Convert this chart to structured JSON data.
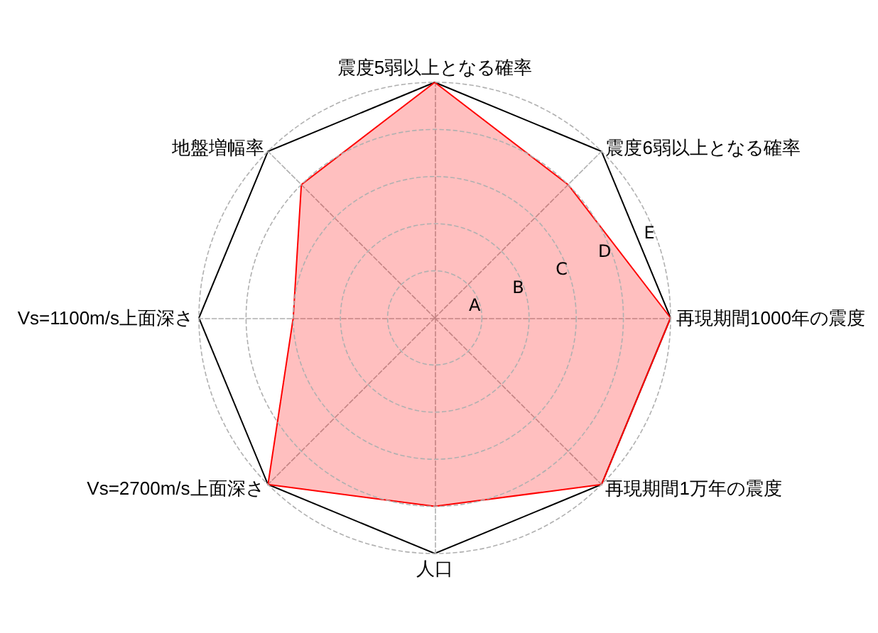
{
  "chart_data": {
    "type": "radar",
    "categories": [
      "震度5弱以上となる確率",
      "震度6弱以上となる確率",
      "再現期間1000年の震度",
      "再現期間1万年の震度",
      "人口",
      "Vs=2700m/s上面深さ",
      "Vs=1100m/s上面深さ",
      "地盤増幅率"
    ],
    "series": [
      {
        "color": "#ff0000",
        "values": [
          5,
          4,
          5,
          5,
          4,
          5,
          3,
          4
        ]
      }
    ],
    "ylim": [
      0,
      5
    ],
    "yticks": [
      {
        "value": 1,
        "label": "A"
      },
      {
        "value": 2,
        "label": "B"
      },
      {
        "value": 3,
        "label": "C"
      },
      {
        "value": 4,
        "label": "D"
      },
      {
        "value": 5,
        "label": "E"
      }
    ],
    "grid": true
  }
}
